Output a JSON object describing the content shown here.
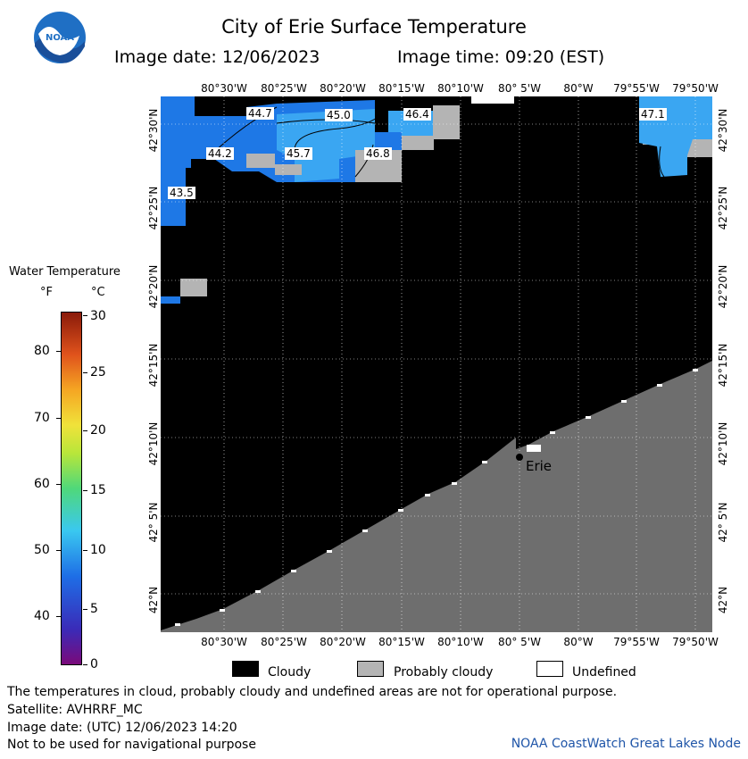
{
  "header": {
    "title": "City of Erie Surface Temperature",
    "image_date": "Image date: 12/06/2023",
    "image_time": "Image time: 09:20 (EST)",
    "logo_text": "NOAA"
  },
  "map": {
    "lon_labels": [
      "80°30'W",
      "80°25'W",
      "80°20'W",
      "80°15'W",
      "80°10'W",
      "80° 5'W",
      "80°W",
      "79°55'W",
      "79°50'W"
    ],
    "lat_labels": [
      "42°30'N",
      "42°25'N",
      "42°20'N",
      "42°15'N",
      "42°10'N",
      "42° 5'N",
      "42°N"
    ],
    "city": "Erie",
    "temperature_labels": [
      "44.7",
      "45.0",
      "46.4",
      "47.1",
      "44.2",
      "45.7",
      "46.8",
      "43.5"
    ],
    "colors": {
      "cloudy": "#000000",
      "probably_cloudy": "#b4b4b4",
      "land": "#6e6e6e",
      "undefined": "#ffffff",
      "water_warm": "#3aa6f2",
      "water_cool": "#1e78e6"
    }
  },
  "legend": {
    "title": "Water Temperature",
    "unit_f": "°F",
    "unit_c": "°C",
    "f_ticks": [
      "80",
      "70",
      "60",
      "50",
      "40"
    ],
    "c_ticks": [
      "30",
      "25",
      "20",
      "15",
      "10",
      "5",
      "0"
    ],
    "categories": [
      "Cloudy",
      "Probably cloudy",
      "Undefined"
    ]
  },
  "footer": {
    "line1": "The temperatures in cloud, probably cloudy and undefined areas are not for operational purpose.",
    "line2": "Satellite: AVHRRF_MC",
    "line3": "Image date: (UTC) 12/06/2023  14:20",
    "line4": "Not to be used for navigational purpose",
    "credit": "NOAA CoastWatch Great Lakes Node"
  }
}
